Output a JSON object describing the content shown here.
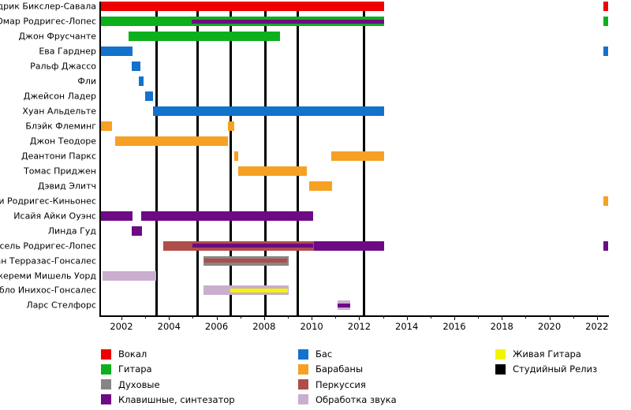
{
  "page": {
    "background": "#ffffff"
  },
  "chart_data": {
    "type": "timeline",
    "title": "",
    "x_axis": {
      "range": [
        2001.1,
        2022.55
      ],
      "major_tick_labels": [
        "2002",
        "2004",
        "2006",
        "2008",
        "2010",
        "2012",
        "2014",
        "2016",
        "2018",
        "2020",
        "2022"
      ],
      "major_tick_years": [
        2002,
        2004,
        2006,
        2008,
        2010,
        2012,
        2014,
        2016,
        2018,
        2020,
        2022
      ],
      "minor_tick_years": [
        2003,
        2005,
        2007,
        2009,
        2011,
        2013,
        2015,
        2017,
        2019,
        2021
      ]
    },
    "grid": false,
    "legend_position": "bottom",
    "roles": {
      "vocal": {
        "label": "Вокал",
        "color": "#ee0000"
      },
      "guitar": {
        "label": "Гитара",
        "color": "#0cb01c"
      },
      "winds": {
        "label": "Духовые",
        "color": "#868686"
      },
      "keys": {
        "label": "Клавишные, синтезатор",
        "color": "#6e0a85"
      },
      "bass": {
        "label": "Бас",
        "color": "#1272cc"
      },
      "drums": {
        "label": "Барабаны",
        "color": "#f6a123"
      },
      "percussion": {
        "label": "Перкуссия",
        "color": "#af4d49"
      },
      "fx": {
        "label": "Обработка звука",
        "color": "#c9aece"
      },
      "live_guitar": {
        "label": "Живая Гитара",
        "color": "#f3f500"
      },
      "release": {
        "label": "Студийный Релиз",
        "color": "#000000"
      }
    },
    "legend_columns": [
      [
        "vocal",
        "guitar",
        "winds",
        "keys"
      ],
      [
        "bass",
        "drums",
        "percussion",
        "fx"
      ],
      [
        "live_guitar",
        "release"
      ]
    ],
    "release_years": [
      2003.49,
      2005.19,
      2006.58,
      2008.06,
      2009.43,
      2012.2
    ],
    "members": [
      {
        "name": "Седрик Бикслер-Савала",
        "segments": [
          {
            "role": "vocal",
            "start": 2001.12,
            "end": 2013.05,
            "style": "bar"
          },
          {
            "role": "vocal",
            "start": 2022.28,
            "end": 2022.48,
            "style": "bar"
          }
        ]
      },
      {
        "name": "Омар Родригес-Лопес",
        "segments": [
          {
            "role": "guitar",
            "start": 2001.12,
            "end": 2013.05,
            "style": "bar"
          },
          {
            "role": "keys",
            "start": 2004.95,
            "end": 2013.05,
            "style": "stripe"
          },
          {
            "role": "guitar",
            "start": 2022.28,
            "end": 2022.48,
            "style": "bar"
          }
        ]
      },
      {
        "name": "Джон Фрусчанте",
        "segments": [
          {
            "role": "guitar",
            "start": 2002.3,
            "end": 2008.67,
            "style": "bar"
          }
        ]
      },
      {
        "name": "Ева Гарднер",
        "segments": [
          {
            "role": "bass",
            "start": 2001.12,
            "end": 2002.46,
            "style": "bar"
          },
          {
            "role": "bass",
            "start": 2022.28,
            "end": 2022.48,
            "style": "bar"
          }
        ]
      },
      {
        "name": "Ральф Джассо",
        "segments": [
          {
            "role": "bass",
            "start": 2002.42,
            "end": 2002.8,
            "style": "bar"
          }
        ]
      },
      {
        "name": "Фли",
        "segments": [
          {
            "role": "bass",
            "start": 2002.72,
            "end": 2002.93,
            "style": "bar"
          }
        ]
      },
      {
        "name": "Джейсон Ладер",
        "segments": [
          {
            "role": "bass",
            "start": 2003.0,
            "end": 2003.32,
            "style": "bar"
          }
        ]
      },
      {
        "name": "Хуан Альдельте",
        "segments": [
          {
            "role": "bass",
            "start": 2003.32,
            "end": 2013.05,
            "style": "bar"
          }
        ]
      },
      {
        "name": "Блэйк Флеминг",
        "segments": [
          {
            "role": "drums",
            "start": 2001.12,
            "end": 2001.6,
            "style": "bar"
          },
          {
            "role": "drums",
            "start": 2006.48,
            "end": 2006.74,
            "style": "bar"
          }
        ]
      },
      {
        "name": "Джон Теодоре",
        "segments": [
          {
            "role": "drums",
            "start": 2001.72,
            "end": 2006.48,
            "style": "bar"
          }
        ]
      },
      {
        "name": "Деантони Паркс",
        "segments": [
          {
            "role": "drums",
            "start": 2006.74,
            "end": 2006.9,
            "style": "bar"
          },
          {
            "role": "drums",
            "start": 2010.82,
            "end": 2013.05,
            "style": "bar"
          }
        ]
      },
      {
        "name": "Томас Приджен",
        "segments": [
          {
            "role": "drums",
            "start": 2006.9,
            "end": 2009.8,
            "style": "bar"
          }
        ]
      },
      {
        "name": "Дэвид Элитч",
        "segments": [
          {
            "role": "drums",
            "start": 2009.9,
            "end": 2010.85,
            "style": "bar"
          }
        ]
      },
      {
        "name": "илли Родригес-Киньонес",
        "segments": [
          {
            "role": "drums",
            "start": 2022.28,
            "end": 2022.48,
            "style": "bar"
          }
        ]
      },
      {
        "name": "Исайя Айки Оуэнс",
        "segments": [
          {
            "role": "keys",
            "start": 2001.12,
            "end": 2002.46,
            "style": "bar"
          },
          {
            "role": "keys",
            "start": 2002.82,
            "end": 2010.06,
            "style": "bar"
          }
        ]
      },
      {
        "name": "Линда Гуд",
        "segments": [
          {
            "role": "keys",
            "start": 2002.42,
            "end": 2002.85,
            "style": "bar"
          }
        ]
      },
      {
        "name": "Марсель Родригес-Лопес",
        "segments": [
          {
            "role": "percussion",
            "start": 2003.76,
            "end": 2010.1,
            "style": "bar"
          },
          {
            "role": "keys",
            "start": 2005.0,
            "end": 2010.05,
            "style": "stripe"
          },
          {
            "role": "keys",
            "start": 2010.1,
            "end": 2013.05,
            "style": "bar"
          },
          {
            "role": "keys",
            "start": 2022.28,
            "end": 2022.48,
            "style": "bar"
          }
        ]
      },
      {
        "name": "риан Терразас-Гонсалес",
        "segments": [
          {
            "role": "winds",
            "start": 2005.45,
            "end": 2009.03,
            "style": "bar"
          },
          {
            "role": "percussion",
            "start": 2005.5,
            "end": 2008.97,
            "style": "stripe"
          }
        ]
      },
      {
        "name": "Джереми Мишель Уорд",
        "segments": [
          {
            "role": "fx",
            "start": 2001.2,
            "end": 2003.46,
            "style": "bar"
          }
        ]
      },
      {
        "name": "Пабло Инихос-Гонсалес",
        "segments": [
          {
            "role": "fx",
            "start": 2005.45,
            "end": 2009.03,
            "style": "bar"
          },
          {
            "role": "live_guitar",
            "start": 2006.58,
            "end": 2008.99,
            "style": "stripe"
          }
        ]
      },
      {
        "name": "Ларс Стелфорс",
        "segments": [
          {
            "role": "fx",
            "start": 2011.1,
            "end": 2011.63,
            "style": "bar"
          },
          {
            "role": "keys",
            "start": 2011.1,
            "end": 2011.63,
            "style": "stripe"
          }
        ]
      }
    ]
  }
}
